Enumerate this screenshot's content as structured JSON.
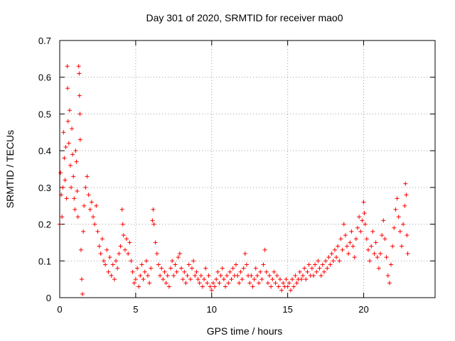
{
  "chart_data": {
    "type": "scatter",
    "title": "Day 301 of 2020, SRMTID for receiver mao0",
    "xlabel": "GPS time / hours",
    "ylabel": "SRMTID / TECUs",
    "xlim": [
      0,
      24.7
    ],
    "ylim": [
      0,
      0.7
    ],
    "xticks": [
      0,
      5,
      10,
      15,
      20
    ],
    "xtick_labels": [
      "0",
      "5",
      "10",
      "15",
      "20"
    ],
    "yticks": [
      0,
      0.1,
      0.2,
      0.3,
      0.4,
      0.5,
      0.6,
      0.7
    ],
    "ytick_labels": [
      "0",
      "0.1",
      "0.2",
      "0.3",
      "0.4",
      "0.5",
      "0.6",
      "0.7"
    ],
    "grid": true,
    "marker": "plus",
    "color": "#ff0000",
    "series": [
      {
        "name": "SRMTID",
        "points": [
          [
            0.0,
            0.2
          ],
          [
            0.05,
            0.34
          ],
          [
            0.1,
            0.28
          ],
          [
            0.15,
            0.22
          ],
          [
            0.2,
            0.3
          ],
          [
            0.25,
            0.45
          ],
          [
            0.3,
            0.38
          ],
          [
            0.35,
            0.32
          ],
          [
            0.4,
            0.41
          ],
          [
            0.45,
            0.27
          ],
          [
            0.5,
            0.63
          ],
          [
            0.52,
            0.57
          ],
          [
            0.55,
            0.48
          ],
          [
            0.6,
            0.42
          ],
          [
            0.65,
            0.51
          ],
          [
            0.7,
            0.36
          ],
          [
            0.75,
            0.3
          ],
          [
            0.8,
            0.46
          ],
          [
            0.85,
            0.39
          ],
          [
            0.9,
            0.33
          ],
          [
            0.95,
            0.27
          ],
          [
            1.0,
            0.24
          ],
          [
            1.05,
            0.4
          ],
          [
            1.1,
            0.37
          ],
          [
            1.15,
            0.29
          ],
          [
            1.2,
            0.22
          ],
          [
            1.25,
            0.63
          ],
          [
            1.28,
            0.61
          ],
          [
            1.3,
            0.55
          ],
          [
            1.33,
            0.5
          ],
          [
            1.35,
            0.43
          ],
          [
            1.4,
            0.13
          ],
          [
            1.45,
            0.05
          ],
          [
            1.5,
            0.01
          ],
          [
            1.55,
            0.18
          ],
          [
            1.6,
            0.25
          ],
          [
            1.7,
            0.3
          ],
          [
            1.8,
            0.33
          ],
          [
            1.9,
            0.28
          ],
          [
            2.0,
            0.24
          ],
          [
            2.1,
            0.26
          ],
          [
            2.2,
            0.22
          ],
          [
            2.3,
            0.2
          ],
          [
            2.4,
            0.25
          ],
          [
            2.5,
            0.18
          ],
          [
            2.6,
            0.14
          ],
          [
            2.7,
            0.12
          ],
          [
            2.8,
            0.16
          ],
          [
            2.9,
            0.1
          ],
          [
            3.0,
            0.09
          ],
          [
            3.1,
            0.13
          ],
          [
            3.2,
            0.07
          ],
          [
            3.3,
            0.11
          ],
          [
            3.4,
            0.06
          ],
          [
            3.5,
            0.09
          ],
          [
            3.6,
            0.05
          ],
          [
            3.7,
            0.1
          ],
          [
            3.8,
            0.08
          ],
          [
            3.9,
            0.12
          ],
          [
            4.0,
            0.14
          ],
          [
            4.1,
            0.24
          ],
          [
            4.15,
            0.2
          ],
          [
            4.2,
            0.17
          ],
          [
            4.3,
            0.13
          ],
          [
            4.4,
            0.16
          ],
          [
            4.5,
            0.12
          ],
          [
            4.6,
            0.15
          ],
          [
            4.7,
            0.1
          ],
          [
            4.8,
            0.07
          ],
          [
            4.9,
            0.04
          ],
          [
            5.0,
            0.05
          ],
          [
            5.1,
            0.08
          ],
          [
            5.2,
            0.03
          ],
          [
            5.3,
            0.06
          ],
          [
            5.4,
            0.09
          ],
          [
            5.5,
            0.05
          ],
          [
            5.6,
            0.07
          ],
          [
            5.7,
            0.1
          ],
          [
            5.8,
            0.06
          ],
          [
            5.9,
            0.04
          ],
          [
            6.0,
            0.08
          ],
          [
            6.1,
            0.21
          ],
          [
            6.15,
            0.24
          ],
          [
            6.2,
            0.2
          ],
          [
            6.3,
            0.15
          ],
          [
            6.4,
            0.12
          ],
          [
            6.5,
            0.09
          ],
          [
            6.6,
            0.06
          ],
          [
            6.7,
            0.08
          ],
          [
            6.8,
            0.05
          ],
          [
            6.9,
            0.07
          ],
          [
            7.0,
            0.04
          ],
          [
            7.1,
            0.06
          ],
          [
            7.2,
            0.03
          ],
          [
            7.3,
            0.08
          ],
          [
            7.4,
            0.1
          ],
          [
            7.5,
            0.06
          ],
          [
            7.6,
            0.09
          ],
          [
            7.7,
            0.07
          ],
          [
            7.8,
            0.11
          ],
          [
            7.9,
            0.12
          ],
          [
            8.0,
            0.08
          ],
          [
            8.1,
            0.05
          ],
          [
            8.2,
            0.07
          ],
          [
            8.3,
            0.04
          ],
          [
            8.4,
            0.06
          ],
          [
            8.5,
            0.09
          ],
          [
            8.6,
            0.05
          ],
          [
            8.7,
            0.08
          ],
          [
            8.8,
            0.1
          ],
          [
            8.9,
            0.06
          ],
          [
            9.0,
            0.07
          ],
          [
            9.1,
            0.05
          ],
          [
            9.2,
            0.04
          ],
          [
            9.3,
            0.06
          ],
          [
            9.4,
            0.03
          ],
          [
            9.5,
            0.05
          ],
          [
            9.6,
            0.08
          ],
          [
            9.7,
            0.04
          ],
          [
            9.8,
            0.06
          ],
          [
            9.9,
            0.03
          ],
          [
            10.0,
            0.02
          ],
          [
            10.1,
            0.04
          ],
          [
            10.2,
            0.03
          ],
          [
            10.3,
            0.05
          ],
          [
            10.4,
            0.07
          ],
          [
            10.5,
            0.04
          ],
          [
            10.6,
            0.06
          ],
          [
            10.7,
            0.08
          ],
          [
            10.8,
            0.05
          ],
          [
            10.9,
            0.03
          ],
          [
            11.0,
            0.06
          ],
          [
            11.1,
            0.04
          ],
          [
            11.2,
            0.07
          ],
          [
            11.3,
            0.05
          ],
          [
            11.4,
            0.08
          ],
          [
            11.5,
            0.06
          ],
          [
            11.6,
            0.09
          ],
          [
            11.7,
            0.06
          ],
          [
            11.8,
            0.04
          ],
          [
            11.9,
            0.07
          ],
          [
            12.0,
            0.05
          ],
          [
            12.1,
            0.08
          ],
          [
            12.2,
            0.12
          ],
          [
            12.3,
            0.09
          ],
          [
            12.4,
            0.06
          ],
          [
            12.5,
            0.04
          ],
          [
            12.6,
            0.06
          ],
          [
            12.7,
            0.03
          ],
          [
            12.8,
            0.05
          ],
          [
            12.9,
            0.08
          ],
          [
            13.0,
            0.06
          ],
          [
            13.1,
            0.04
          ],
          [
            13.2,
            0.07
          ],
          [
            13.3,
            0.05
          ],
          [
            13.4,
            0.09
          ],
          [
            13.5,
            0.13
          ],
          [
            13.6,
            0.07
          ],
          [
            13.7,
            0.04
          ],
          [
            13.8,
            0.06
          ],
          [
            13.9,
            0.03
          ],
          [
            14.0,
            0.05
          ],
          [
            14.1,
            0.07
          ],
          [
            14.2,
            0.04
          ],
          [
            14.3,
            0.06
          ],
          [
            14.4,
            0.03
          ],
          [
            14.5,
            0.05
          ],
          [
            14.6,
            0.02
          ],
          [
            14.7,
            0.04
          ],
          [
            14.8,
            0.03
          ],
          [
            14.9,
            0.05
          ],
          [
            15.0,
            0.03
          ],
          [
            15.1,
            0.04
          ],
          [
            15.2,
            0.02
          ],
          [
            15.3,
            0.05
          ],
          [
            15.4,
            0.03
          ],
          [
            15.5,
            0.06
          ],
          [
            15.6,
            0.04
          ],
          [
            15.7,
            0.05
          ],
          [
            15.8,
            0.07
          ],
          [
            15.9,
            0.05
          ],
          [
            16.0,
            0.06
          ],
          [
            16.1,
            0.08
          ],
          [
            16.2,
            0.05
          ],
          [
            16.3,
            0.07
          ],
          [
            16.4,
            0.09
          ],
          [
            16.5,
            0.06
          ],
          [
            16.6,
            0.08
          ],
          [
            16.7,
            0.06
          ],
          [
            16.8,
            0.09
          ],
          [
            16.9,
            0.07
          ],
          [
            17.0,
            0.1
          ],
          [
            17.1,
            0.08
          ],
          [
            17.2,
            0.06
          ],
          [
            17.3,
            0.09
          ],
          [
            17.4,
            0.07
          ],
          [
            17.5,
            0.1
          ],
          [
            17.6,
            0.08
          ],
          [
            17.7,
            0.11
          ],
          [
            17.8,
            0.09
          ],
          [
            17.9,
            0.12
          ],
          [
            18.0,
            0.1
          ],
          [
            18.1,
            0.13
          ],
          [
            18.2,
            0.11
          ],
          [
            18.3,
            0.14
          ],
          [
            18.4,
            0.1
          ],
          [
            18.5,
            0.16
          ],
          [
            18.6,
            0.13
          ],
          [
            18.7,
            0.2
          ],
          [
            18.8,
            0.17
          ],
          [
            18.9,
            0.14
          ],
          [
            19.0,
            0.12
          ],
          [
            19.1,
            0.15
          ],
          [
            19.2,
            0.18
          ],
          [
            19.3,
            0.14
          ],
          [
            19.4,
            0.11
          ],
          [
            19.5,
            0.16
          ],
          [
            19.6,
            0.19
          ],
          [
            19.7,
            0.22
          ],
          [
            19.8,
            0.18
          ],
          [
            19.9,
            0.21
          ],
          [
            20.0,
            0.26
          ],
          [
            20.05,
            0.23
          ],
          [
            20.1,
            0.2
          ],
          [
            20.2,
            0.16
          ],
          [
            20.3,
            0.13
          ],
          [
            20.4,
            0.1
          ],
          [
            20.5,
            0.14
          ],
          [
            20.6,
            0.18
          ],
          [
            20.7,
            0.12
          ],
          [
            20.8,
            0.15
          ],
          [
            20.9,
            0.11
          ],
          [
            21.0,
            0.08
          ],
          [
            21.1,
            0.12
          ],
          [
            21.2,
            0.17
          ],
          [
            21.3,
            0.21
          ],
          [
            21.4,
            0.16
          ],
          [
            21.5,
            0.11
          ],
          [
            21.6,
            0.06
          ],
          [
            21.7,
            0.04
          ],
          [
            21.8,
            0.09
          ],
          [
            21.9,
            0.14
          ],
          [
            22.0,
            0.19
          ],
          [
            22.1,
            0.24
          ],
          [
            22.2,
            0.27
          ],
          [
            22.3,
            0.22
          ],
          [
            22.4,
            0.18
          ],
          [
            22.5,
            0.14
          ],
          [
            22.6,
            0.2
          ],
          [
            22.7,
            0.25
          ],
          [
            22.75,
            0.31
          ],
          [
            22.8,
            0.28
          ],
          [
            22.85,
            0.17
          ],
          [
            22.9,
            0.12
          ]
        ]
      }
    ]
  }
}
